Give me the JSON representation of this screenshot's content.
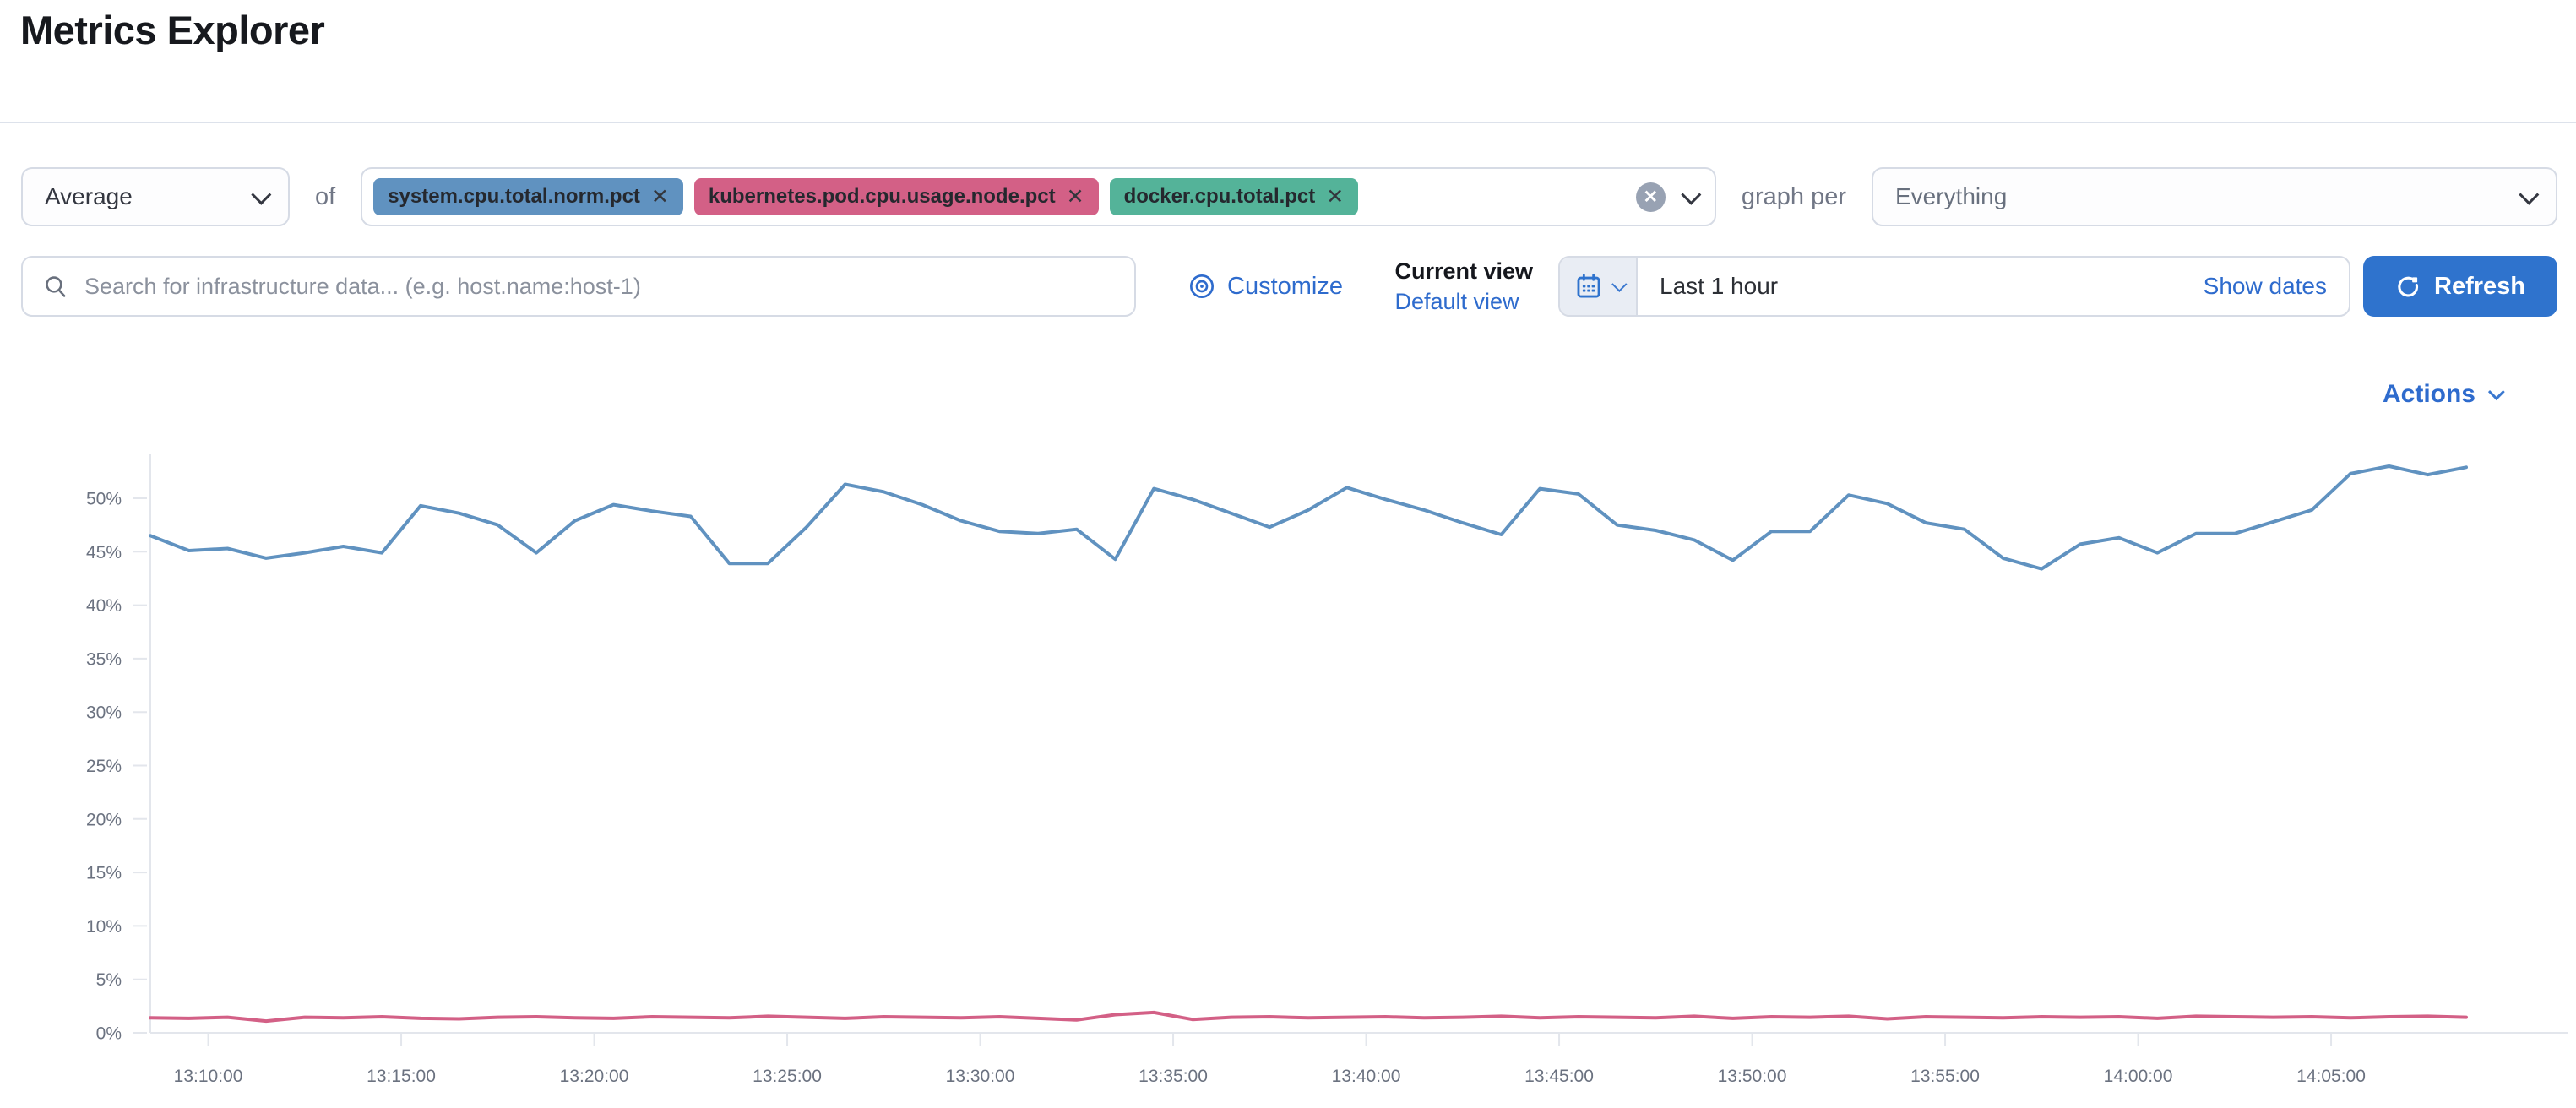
{
  "page": {
    "title": "Metrics Explorer"
  },
  "controls": {
    "aggregation": {
      "value": "Average"
    },
    "of_label": "of",
    "metrics": [
      {
        "label": "system.cpu.total.norm.pct",
        "color": "#6092C0"
      },
      {
        "label": "kubernetes.pod.cpu.usage.node.pct",
        "color": "#D36086"
      },
      {
        "label": "docker.cpu.total.pct",
        "color": "#54B399"
      }
    ],
    "remove_glyph": "✕",
    "clear_glyph": "✕",
    "graph_per_label": "graph per",
    "group_by": {
      "value": "Everything"
    }
  },
  "toolbar": {
    "search_placeholder": "Search for infrastructure data... (e.g. host.name:host-1)",
    "customize_label": "Customize",
    "current_view_label": "Current view",
    "default_view_label": "Default view",
    "time_range": "Last 1 hour",
    "show_dates_label": "Show dates",
    "refresh_label": "Refresh"
  },
  "actions_label": "Actions",
  "colors": {
    "link_blue": "#2e6bcd",
    "primary_button": "#2f73cd",
    "series_blue": "#6092C0",
    "series_pink": "#D36086",
    "axis_line": "#e3e6ec",
    "axis_text": "#6b7280"
  },
  "chart_data": {
    "type": "line",
    "title": "",
    "xlabel": "",
    "ylabel": "",
    "grid": false,
    "legend": "none",
    "y_ticks": {
      "values": [
        0,
        5,
        10,
        15,
        20,
        25,
        30,
        35,
        40,
        45,
        50
      ],
      "labels": [
        "0%",
        "5%",
        "10%",
        "15%",
        "20%",
        "25%",
        "30%",
        "35%",
        "40%",
        "45%",
        "50%"
      ]
    },
    "x_ticks": {
      "minutes": [
        1.5,
        6.5,
        11.5,
        16.5,
        21.5,
        26.5,
        31.5,
        36.5,
        41.5,
        46.5,
        51.5,
        56.5
      ],
      "labels": [
        "13:10:00",
        "13:15:00",
        "13:20:00",
        "13:25:00",
        "13:30:00",
        "13:35:00",
        "13:40:00",
        "13:45:00",
        "13:50:00",
        "13:55:00",
        "14:00:00",
        "14:05:00"
      ]
    },
    "x_range_minutes": [
      0,
      60
    ],
    "ylim": [
      0,
      54
    ],
    "series": [
      {
        "name": "system.cpu.total.norm.pct",
        "color": "#6092C0",
        "values": [
          46.5,
          45.1,
          45.3,
          44.4,
          44.9,
          45.5,
          44.9,
          49.3,
          48.6,
          47.5,
          44.9,
          47.9,
          49.4,
          48.8,
          48.3,
          43.9,
          43.9,
          47.3,
          51.3,
          50.6,
          49.4,
          47.9,
          46.9,
          46.7,
          47.1,
          44.3,
          50.9,
          49.9,
          48.6,
          47.3,
          48.9,
          51.0,
          49.9,
          48.9,
          47.7,
          46.6,
          50.9,
          50.4,
          47.5,
          47.0,
          46.1,
          44.2,
          46.9,
          46.9,
          50.3,
          49.5,
          47.7,
          47.1,
          44.4,
          43.4,
          45.7,
          46.3,
          44.9,
          46.7,
          46.7,
          47.8,
          48.9,
          52.3,
          53.0,
          52.2,
          52.9
        ]
      },
      {
        "name": "kubernetes.pod.cpu.usage.node.pct",
        "color": "#D36086",
        "values": [
          1.4,
          1.35,
          1.45,
          1.1,
          1.45,
          1.4,
          1.5,
          1.35,
          1.3,
          1.45,
          1.5,
          1.4,
          1.35,
          1.5,
          1.45,
          1.4,
          1.55,
          1.45,
          1.35,
          1.5,
          1.45,
          1.4,
          1.5,
          1.35,
          1.2,
          1.7,
          1.9,
          1.25,
          1.45,
          1.5,
          1.4,
          1.45,
          1.5,
          1.4,
          1.45,
          1.55,
          1.4,
          1.5,
          1.45,
          1.4,
          1.55,
          1.35,
          1.5,
          1.45,
          1.55,
          1.3,
          1.5,
          1.45,
          1.4,
          1.5,
          1.45,
          1.5,
          1.35,
          1.55,
          1.5,
          1.45,
          1.5,
          1.4,
          1.5,
          1.55,
          1.45
        ]
      }
    ]
  }
}
